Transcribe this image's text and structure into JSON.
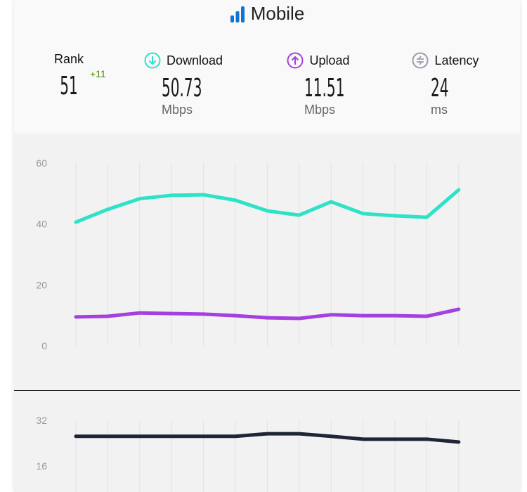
{
  "header": {
    "title": "Mobile"
  },
  "stats": {
    "rank": {
      "label": "Rank",
      "value": "51",
      "delta": "+11"
    },
    "download": {
      "label": "Download",
      "value": "50.73",
      "unit": "Mbps"
    },
    "upload": {
      "label": "Upload",
      "value": "11.51",
      "unit": "Mbps"
    },
    "latency": {
      "label": "Latency",
      "value": "24",
      "unit": "ms"
    }
  },
  "colors": {
    "download": "#2de2c8",
    "upload": "#a43fe0",
    "latency": "#1f2436",
    "brand": "#1173d4"
  },
  "chart_data": [
    {
      "type": "line",
      "yticks": [
        "0",
        "20",
        "40",
        "60"
      ],
      "ylim": [
        0,
        60
      ],
      "series": [
        {
          "name": "Download",
          "values": [
            40.6,
            44.8,
            48.3,
            49.4,
            49.6,
            47.8,
            44.3,
            42.9,
            47.3,
            43.4,
            42.7,
            42.2,
            51.2
          ]
        },
        {
          "name": "Upload",
          "values": [
            9.5,
            9.7,
            10.8,
            10.6,
            10.4,
            9.9,
            9.2,
            9.0,
            10.2,
            9.9,
            9.9,
            9.7,
            12.0
          ]
        }
      ]
    },
    {
      "type": "line",
      "yticks": [
        "16",
        "32"
      ],
      "ylim": [
        0,
        32
      ],
      "series": [
        {
          "name": "Latency",
          "values": [
            26.4,
            26.4,
            26.4,
            26.4,
            26.4,
            26.4,
            27.3,
            27.3,
            26.4,
            25.4,
            25.4,
            25.4,
            24.4
          ]
        }
      ]
    }
  ]
}
